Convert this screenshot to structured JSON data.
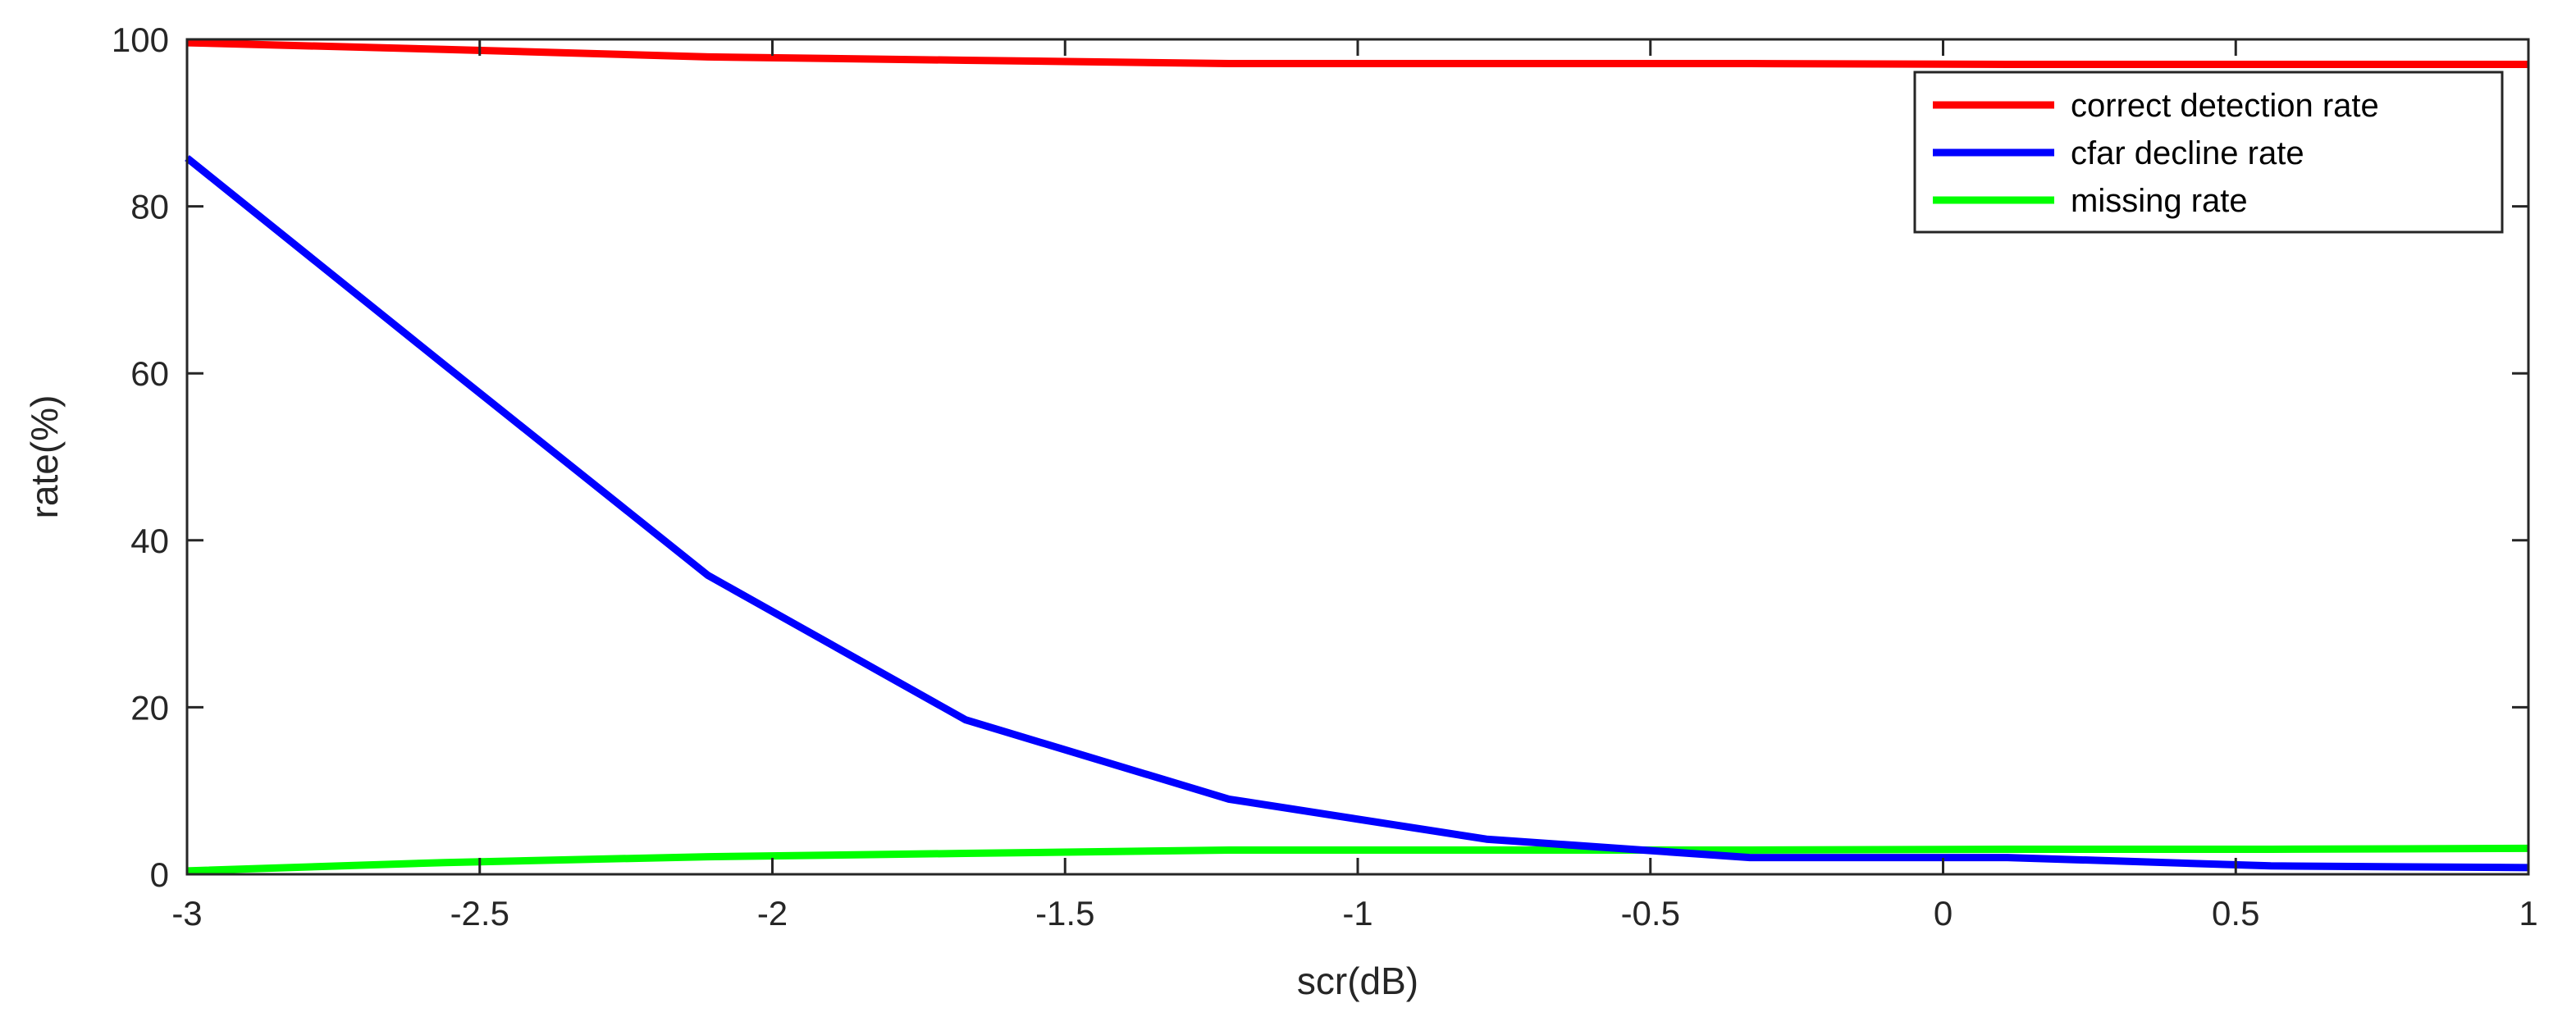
{
  "chart_data": {
    "type": "line",
    "title": "",
    "xlabel": "scr(dB)",
    "ylabel": "rate(%)",
    "xlim": [
      -3,
      1
    ],
    "ylim": [
      0,
      100
    ],
    "xticks": [
      "-3",
      "-2.5",
      "-2",
      "-1.5",
      "-1",
      "-0.5",
      "0",
      "0.5",
      "1"
    ],
    "yticks": [
      "0",
      "20",
      "40",
      "60",
      "80",
      "100"
    ],
    "grid": false,
    "legend_position": "top-right",
    "series": [
      {
        "name": "correct detection rate",
        "color": "#ff0000",
        "x": [
          -3,
          -2.56,
          -2.11,
          -1.67,
          -1.22,
          -0.78,
          -0.33,
          0.11,
          0.56,
          1
        ],
        "y": [
          99.6,
          98.8,
          97.9,
          97.5,
          97.1,
          97.1,
          97.1,
          97.0,
          97.0,
          97.0
        ]
      },
      {
        "name": "cfar decline rate",
        "color": "#0000ff",
        "x": [
          -3,
          -2.56,
          -2.11,
          -1.67,
          -1.22,
          -0.78,
          -0.33,
          0.11,
          0.56,
          1
        ],
        "y": [
          85.8,
          61.0,
          35.8,
          18.5,
          9.0,
          4.2,
          2.0,
          2.0,
          1.0,
          0.8
        ]
      },
      {
        "name": "missing rate",
        "color": "#00ff00",
        "x": [
          -3,
          -2.56,
          -2.11,
          -1.67,
          -1.22,
          -0.78,
          -0.33,
          0.11,
          0.56,
          1
        ],
        "y": [
          0.4,
          1.4,
          2.1,
          2.5,
          2.9,
          2.9,
          2.9,
          3.0,
          3.0,
          3.1
        ]
      }
    ]
  }
}
